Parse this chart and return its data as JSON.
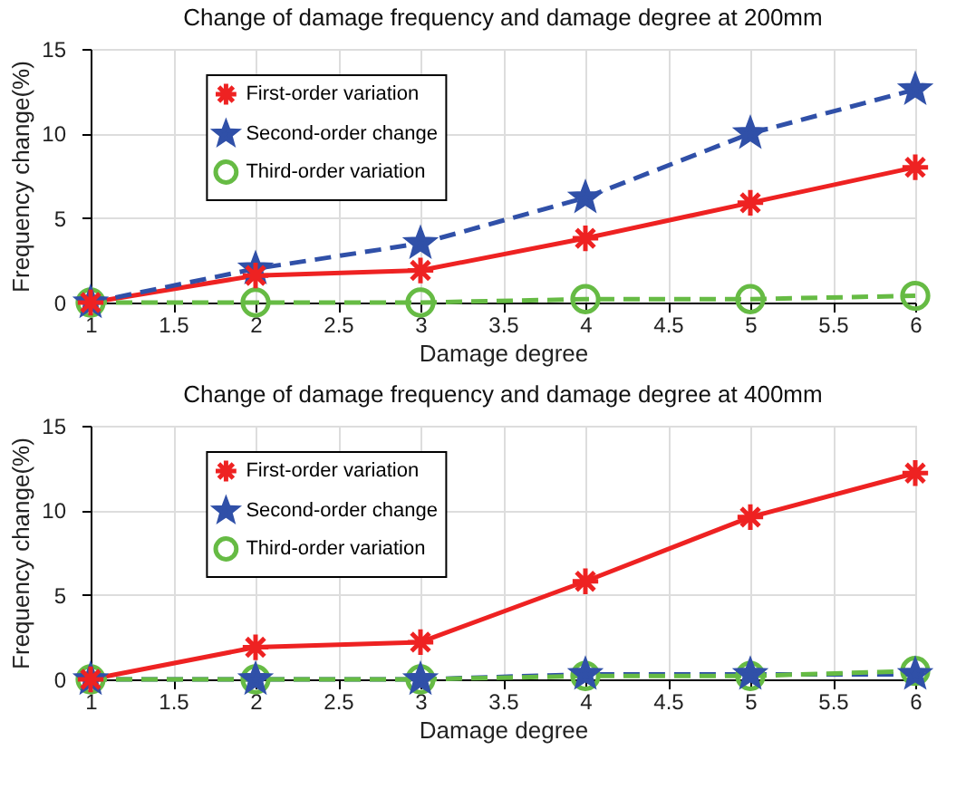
{
  "chart_data": [
    {
      "type": "line",
      "title": "Change of damage frequency and damage degree at 200mm",
      "xlabel": "Damage degree",
      "ylabel": "Frequency change(%)",
      "x": [
        1,
        2,
        3,
        4,
        5,
        6
      ],
      "xlim": [
        1,
        6
      ],
      "xticks": [
        1,
        1.5,
        2,
        2.5,
        3,
        3.5,
        4,
        4.5,
        5,
        5.5,
        6
      ],
      "ylim": [
        0,
        15
      ],
      "yticks": [
        0,
        5,
        10,
        15
      ],
      "grid": true,
      "legend": "top left",
      "series": [
        {
          "name": "First-order variation",
          "color": "#ee2222",
          "marker": "cross",
          "line_style": "solid",
          "values": [
            0,
            1.6,
            1.9,
            3.8,
            5.9,
            8.0
          ]
        },
        {
          "name": "Second-order change",
          "color": "#3050a8",
          "marker": "star",
          "line_style": "dashed",
          "values": [
            0,
            2.0,
            3.5,
            6.2,
            10.0,
            12.6
          ]
        },
        {
          "name": "Third-order variation",
          "color": "#66bb44",
          "marker": "circle",
          "line_style": "dashed",
          "values": [
            0,
            0,
            0,
            0.2,
            0.2,
            0.4
          ]
        }
      ]
    },
    {
      "type": "line",
      "title": "Change of damage frequency and damage degree at 400mm",
      "xlabel": "Damage degree",
      "ylabel": "Frequency change(%)",
      "x": [
        1,
        2,
        3,
        4,
        5,
        6
      ],
      "xlim": [
        1,
        6
      ],
      "xticks": [
        1,
        1.5,
        2,
        2.5,
        3,
        3.5,
        4,
        4.5,
        5,
        5.5,
        6
      ],
      "ylim": [
        0,
        15
      ],
      "yticks": [
        0,
        5,
        10,
        15
      ],
      "grid": true,
      "legend": "top left",
      "series": [
        {
          "name": "First-order variation",
          "color": "#ee2222",
          "marker": "cross",
          "line_style": "solid",
          "values": [
            0,
            1.9,
            2.2,
            5.8,
            9.6,
            12.2
          ]
        },
        {
          "name": "Second-order change",
          "color": "#3050a8",
          "marker": "star",
          "line_style": "dashed",
          "values": [
            0,
            0,
            0,
            0.3,
            0.3,
            0.3
          ]
        },
        {
          "name": "Third-order variation",
          "color": "#66bb44",
          "marker": "circle",
          "line_style": "dashed",
          "values": [
            0,
            0,
            0,
            0.2,
            0.2,
            0.5
          ]
        }
      ]
    }
  ]
}
